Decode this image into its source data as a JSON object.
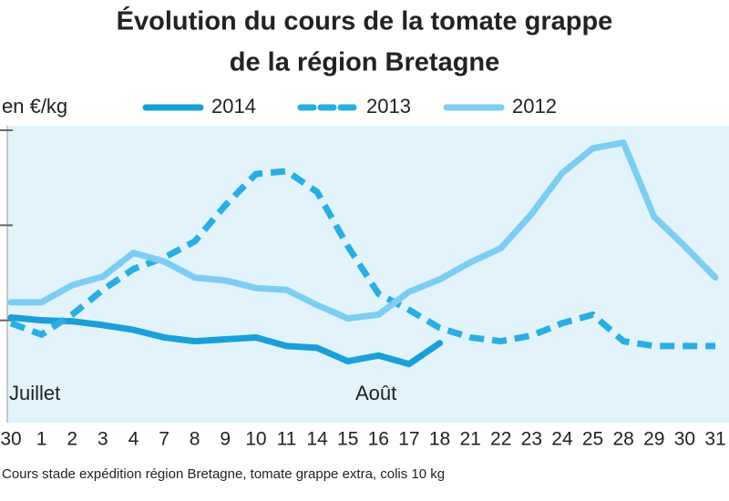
{
  "chart_data": {
    "type": "line",
    "title": "Évolution du cours de la tomate grappe",
    "subtitle": "de la région Bretagne",
    "y_label": "en €/kg",
    "note": "Cours stade expédition région Bretagne, tomate grappe extra, colis 10 kg",
    "annotations": [
      "Juillet",
      "Août"
    ],
    "categories": [
      "30",
      "1",
      "2",
      "3",
      "4",
      "7",
      "8",
      "9",
      "10",
      "11",
      "14",
      "15",
      "16",
      "17",
      "18",
      "21",
      "22",
      "23",
      "24",
      "25",
      "28",
      "29",
      "30",
      "31"
    ],
    "series": [
      {
        "name": "2014",
        "color": "#1a9fd9",
        "dash": false,
        "values": [
          1.03,
          1.0,
          0.99,
          0.95,
          0.9,
          0.82,
          0.78,
          0.8,
          0.82,
          0.73,
          0.71,
          0.57,
          0.63,
          0.54,
          0.76,
          null,
          null,
          null,
          null,
          null,
          null,
          null,
          null,
          null
        ]
      },
      {
        "name": "2013",
        "color": "#2aaee2",
        "dash": true,
        "values": [
          0.97,
          0.85,
          1.06,
          1.32,
          1.54,
          1.66,
          1.83,
          2.21,
          2.54,
          2.57,
          2.35,
          1.78,
          1.28,
          1.11,
          0.92,
          0.82,
          0.78,
          0.84,
          0.97,
          1.06,
          0.78,
          0.73,
          0.73,
          0.73
        ]
      },
      {
        "name": "2012",
        "color": "#7ccdf1",
        "dash": false,
        "values": [
          1.19,
          1.19,
          1.37,
          1.46,
          1.71,
          1.62,
          1.45,
          1.42,
          1.34,
          1.32,
          1.16,
          1.02,
          1.06,
          1.3,
          1.43,
          1.61,
          1.76,
          2.12,
          2.55,
          2.81,
          2.87,
          2.09,
          1.78,
          1.45
        ]
      }
    ],
    "ylim": [
      0,
      3
    ],
    "yticks": [
      1,
      2,
      3
    ]
  }
}
